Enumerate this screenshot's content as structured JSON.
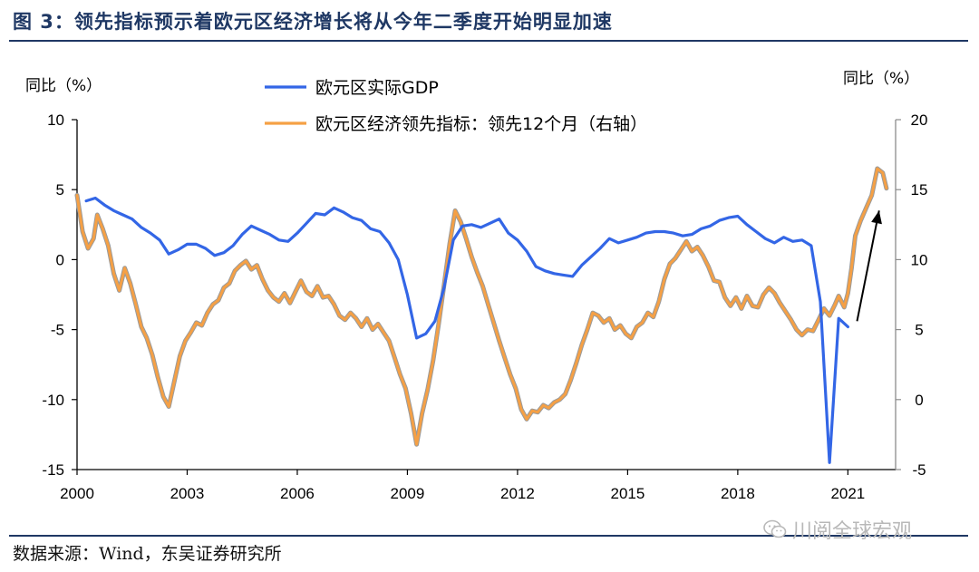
{
  "header": {
    "title": "图 3：领先指标预示着欧元区经济增长将从今年二季度开始明显加速"
  },
  "footer": {
    "source": "数据来源：Wind，东吴证券研究所",
    "watermark": "川阅全球宏观",
    "watermark_icon": "wechat-icon"
  },
  "chart_data": {
    "type": "line",
    "left_unit": "同比（%）",
    "right_unit": "同比（%）",
    "x_ticks": [
      "2000",
      "2003",
      "2006",
      "2009",
      "2012",
      "2015",
      "2018",
      "2021"
    ],
    "x_range": [
      2000,
      2022.3
    ],
    "yleft": {
      "min": -15,
      "max": 10,
      "ticks": [
        10,
        5,
        0,
        -5,
        -10,
        -15
      ]
    },
    "yright": {
      "min": -5,
      "max": 20,
      "ticks": [
        20,
        15,
        10,
        5,
        0,
        -5
      ]
    },
    "legend_placement": "top-center",
    "colors": {
      "gdp": "#3366e6",
      "lead": "#f5a045",
      "lead_outline": "#9a9a9a",
      "right_axis": "#8c8c8c",
      "arrow": "#000000"
    },
    "annotation": {
      "type": "arrow",
      "from": [
        2021.25,
        5.6
      ],
      "to": [
        2021.85,
        13.5
      ],
      "axis": "right"
    },
    "series": [
      {
        "name": "欧元区实际GDP",
        "axis": "left",
        "points": [
          [
            2000.25,
            4.2
          ],
          [
            2000.5,
            4.4
          ],
          [
            2000.75,
            3.9
          ],
          [
            2001.0,
            3.5
          ],
          [
            2001.25,
            3.2
          ],
          [
            2001.5,
            2.9
          ],
          [
            2001.75,
            2.3
          ],
          [
            2002.0,
            1.9
          ],
          [
            2002.25,
            1.4
          ],
          [
            2002.5,
            0.4
          ],
          [
            2002.75,
            0.7
          ],
          [
            2003.0,
            1.1
          ],
          [
            2003.25,
            1.1
          ],
          [
            2003.5,
            0.8
          ],
          [
            2003.75,
            0.3
          ],
          [
            2004.0,
            0.5
          ],
          [
            2004.25,
            1.0
          ],
          [
            2004.5,
            1.8
          ],
          [
            2004.75,
            2.4
          ],
          [
            2005.0,
            2.1
          ],
          [
            2005.25,
            1.8
          ],
          [
            2005.5,
            1.4
          ],
          [
            2005.75,
            1.3
          ],
          [
            2006.0,
            1.9
          ],
          [
            2006.25,
            2.6
          ],
          [
            2006.5,
            3.3
          ],
          [
            2006.75,
            3.2
          ],
          [
            2007.0,
            3.7
          ],
          [
            2007.25,
            3.4
          ],
          [
            2007.5,
            3.0
          ],
          [
            2007.75,
            2.8
          ],
          [
            2008.0,
            2.2
          ],
          [
            2008.25,
            2.0
          ],
          [
            2008.5,
            1.2
          ],
          [
            2008.75,
            0.0
          ],
          [
            2009.0,
            -2.5
          ],
          [
            2009.25,
            -5.6
          ],
          [
            2009.5,
            -5.3
          ],
          [
            2009.75,
            -4.4
          ],
          [
            2010.0,
            -2.0
          ],
          [
            2010.25,
            1.4
          ],
          [
            2010.5,
            2.4
          ],
          [
            2010.75,
            2.5
          ],
          [
            2011.0,
            2.3
          ],
          [
            2011.25,
            2.6
          ],
          [
            2011.5,
            2.9
          ],
          [
            2011.75,
            1.9
          ],
          [
            2012.0,
            1.4
          ],
          [
            2012.25,
            0.6
          ],
          [
            2012.5,
            -0.5
          ],
          [
            2012.75,
            -0.8
          ],
          [
            2013.0,
            -1.0
          ],
          [
            2013.25,
            -1.1
          ],
          [
            2013.5,
            -1.2
          ],
          [
            2013.75,
            -0.4
          ],
          [
            2014.0,
            0.2
          ],
          [
            2014.25,
            0.8
          ],
          [
            2014.5,
            1.5
          ],
          [
            2014.75,
            1.2
          ],
          [
            2015.0,
            1.4
          ],
          [
            2015.25,
            1.6
          ],
          [
            2015.5,
            1.9
          ],
          [
            2015.75,
            2.0
          ],
          [
            2016.0,
            2.0
          ],
          [
            2016.25,
            1.9
          ],
          [
            2016.5,
            1.7
          ],
          [
            2016.75,
            1.8
          ],
          [
            2017.0,
            2.2
          ],
          [
            2017.25,
            2.4
          ],
          [
            2017.5,
            2.8
          ],
          [
            2017.75,
            3.0
          ],
          [
            2018.0,
            3.1
          ],
          [
            2018.25,
            2.5
          ],
          [
            2018.5,
            2.0
          ],
          [
            2018.75,
            1.5
          ],
          [
            2019.0,
            1.2
          ],
          [
            2019.25,
            1.6
          ],
          [
            2019.5,
            1.3
          ],
          [
            2019.75,
            1.4
          ],
          [
            2020.0,
            1.0
          ],
          [
            2020.25,
            -3.0
          ],
          [
            2020.5,
            -14.5
          ],
          [
            2020.75,
            -4.2
          ],
          [
            2021.0,
            -4.8
          ]
        ]
      },
      {
        "name": "欧元区经济领先指标：领先12个月（右轴）",
        "axis": "right",
        "points": [
          [
            2000.0,
            14.6
          ],
          [
            2000.15,
            12.0
          ],
          [
            2000.3,
            10.8
          ],
          [
            2000.45,
            11.5
          ],
          [
            2000.55,
            13.2
          ],
          [
            2000.7,
            12.2
          ],
          [
            2000.85,
            11.0
          ],
          [
            2001.0,
            9.0
          ],
          [
            2001.15,
            7.8
          ],
          [
            2001.3,
            9.4
          ],
          [
            2001.45,
            8.3
          ],
          [
            2001.6,
            6.8
          ],
          [
            2001.75,
            5.2
          ],
          [
            2001.9,
            4.4
          ],
          [
            2002.05,
            3.2
          ],
          [
            2002.2,
            1.6
          ],
          [
            2002.35,
            0.2
          ],
          [
            2002.5,
            -0.5
          ],
          [
            2002.65,
            1.3
          ],
          [
            2002.8,
            3.1
          ],
          [
            2002.95,
            4.2
          ],
          [
            2003.1,
            4.8
          ],
          [
            2003.25,
            5.5
          ],
          [
            2003.4,
            5.3
          ],
          [
            2003.55,
            6.2
          ],
          [
            2003.7,
            6.8
          ],
          [
            2003.85,
            7.1
          ],
          [
            2004.0,
            8.0
          ],
          [
            2004.15,
            8.3
          ],
          [
            2004.3,
            9.2
          ],
          [
            2004.45,
            9.6
          ],
          [
            2004.6,
            9.9
          ],
          [
            2004.75,
            9.3
          ],
          [
            2004.9,
            9.6
          ],
          [
            2005.05,
            8.6
          ],
          [
            2005.2,
            7.8
          ],
          [
            2005.35,
            7.3
          ],
          [
            2005.5,
            7.0
          ],
          [
            2005.65,
            7.6
          ],
          [
            2005.8,
            6.9
          ],
          [
            2005.95,
            7.7
          ],
          [
            2006.1,
            8.5
          ],
          [
            2006.25,
            7.7
          ],
          [
            2006.4,
            7.4
          ],
          [
            2006.55,
            8.1
          ],
          [
            2006.7,
            7.3
          ],
          [
            2006.85,
            7.4
          ],
          [
            2007.0,
            6.8
          ],
          [
            2007.15,
            6.0
          ],
          [
            2007.3,
            5.7
          ],
          [
            2007.45,
            6.2
          ],
          [
            2007.6,
            5.8
          ],
          [
            2007.75,
            5.2
          ],
          [
            2007.9,
            5.8
          ],
          [
            2008.05,
            5.0
          ],
          [
            2008.2,
            5.4
          ],
          [
            2008.35,
            4.8
          ],
          [
            2008.5,
            4.2
          ],
          [
            2008.65,
            3.0
          ],
          [
            2008.8,
            1.8
          ],
          [
            2008.95,
            0.8
          ],
          [
            2009.1,
            -1.0
          ],
          [
            2009.25,
            -3.2
          ],
          [
            2009.4,
            -1.0
          ],
          [
            2009.55,
            0.7
          ],
          [
            2009.7,
            2.8
          ],
          [
            2009.85,
            5.4
          ],
          [
            2010.0,
            8.2
          ],
          [
            2010.15,
            11.1
          ],
          [
            2010.3,
            13.5
          ],
          [
            2010.45,
            12.7
          ],
          [
            2010.6,
            11.5
          ],
          [
            2010.75,
            10.2
          ],
          [
            2010.9,
            9.1
          ],
          [
            2011.05,
            8.1
          ],
          [
            2011.2,
            6.8
          ],
          [
            2011.35,
            5.5
          ],
          [
            2011.5,
            4.2
          ],
          [
            2011.65,
            3.0
          ],
          [
            2011.8,
            1.8
          ],
          [
            2011.95,
            0.8
          ],
          [
            2012.1,
            -0.7
          ],
          [
            2012.25,
            -1.4
          ],
          [
            2012.4,
            -0.8
          ],
          [
            2012.55,
            -0.9
          ],
          [
            2012.7,
            -0.4
          ],
          [
            2012.85,
            -0.6
          ],
          [
            2013.0,
            -0.2
          ],
          [
            2013.15,
            0.0
          ],
          [
            2013.3,
            0.4
          ],
          [
            2013.45,
            1.4
          ],
          [
            2013.6,
            2.6
          ],
          [
            2013.75,
            3.9
          ],
          [
            2013.9,
            5.0
          ],
          [
            2014.05,
            6.2
          ],
          [
            2014.2,
            6.0
          ],
          [
            2014.35,
            5.5
          ],
          [
            2014.5,
            5.8
          ],
          [
            2014.65,
            5.0
          ],
          [
            2014.8,
            5.3
          ],
          [
            2014.95,
            4.7
          ],
          [
            2015.1,
            4.4
          ],
          [
            2015.25,
            5.2
          ],
          [
            2015.4,
            5.5
          ],
          [
            2015.55,
            6.2
          ],
          [
            2015.7,
            5.9
          ],
          [
            2015.85,
            7.0
          ],
          [
            2016.0,
            8.6
          ],
          [
            2016.15,
            9.7
          ],
          [
            2016.3,
            10.1
          ],
          [
            2016.45,
            10.7
          ],
          [
            2016.6,
            11.3
          ],
          [
            2016.75,
            10.6
          ],
          [
            2016.9,
            10.9
          ],
          [
            2017.05,
            10.3
          ],
          [
            2017.2,
            9.5
          ],
          [
            2017.35,
            8.5
          ],
          [
            2017.5,
            8.4
          ],
          [
            2017.65,
            7.3
          ],
          [
            2017.8,
            6.7
          ],
          [
            2017.95,
            7.3
          ],
          [
            2018.1,
            6.5
          ],
          [
            2018.25,
            7.4
          ],
          [
            2018.4,
            6.7
          ],
          [
            2018.55,
            6.6
          ],
          [
            2018.7,
            7.5
          ],
          [
            2018.85,
            8.0
          ],
          [
            2019.0,
            7.6
          ],
          [
            2019.15,
            6.9
          ],
          [
            2019.3,
            6.3
          ],
          [
            2019.45,
            5.7
          ],
          [
            2019.6,
            5.0
          ],
          [
            2019.75,
            4.6
          ],
          [
            2019.9,
            5.0
          ],
          [
            2020.05,
            4.9
          ],
          [
            2020.2,
            5.7
          ],
          [
            2020.35,
            6.5
          ],
          [
            2020.5,
            6.0
          ],
          [
            2020.65,
            6.8
          ],
          [
            2020.75,
            7.4
          ],
          [
            2020.9,
            6.6
          ],
          [
            2021.0,
            7.6
          ],
          [
            2021.1,
            9.4
          ],
          [
            2021.2,
            11.7
          ],
          [
            2021.35,
            12.8
          ],
          [
            2021.5,
            13.7
          ],
          [
            2021.65,
            14.6
          ],
          [
            2021.8,
            16.5
          ],
          [
            2021.95,
            16.2
          ],
          [
            2022.05,
            15.1
          ]
        ]
      }
    ]
  }
}
